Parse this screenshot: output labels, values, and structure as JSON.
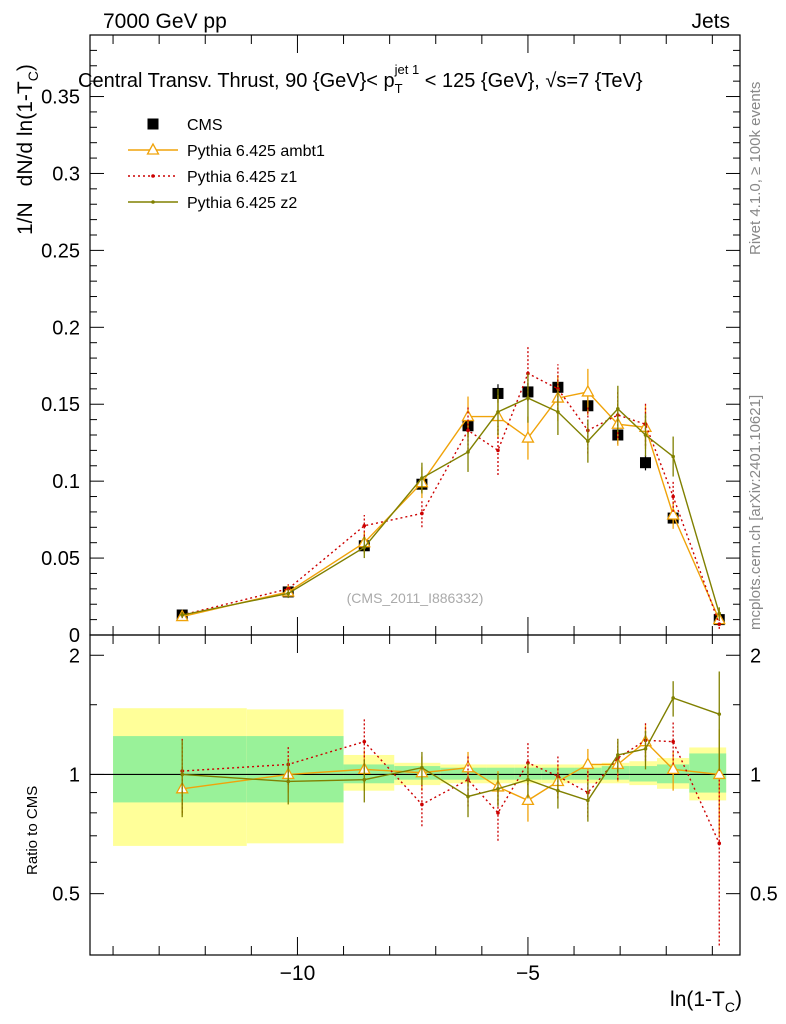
{
  "header": {
    "left": "7000 GeV pp",
    "right": "Jets"
  },
  "side_labels": {
    "rivet": "Rivet 4.1.0, ≥ 100k events",
    "mcplots": "mcplots.cern.ch [arXiv:2401.10621]"
  },
  "watermark": "(CMS_2011_I886332)",
  "colors": {
    "cms": "#000000",
    "ambt1": "#f0a30a",
    "z1": "#cc0000",
    "z2": "#808000",
    "band_green": "#99f299",
    "band_yellow": "#ffff99"
  },
  "chart_data": [
    {
      "type": "scatter",
      "title": "Central Transv. Thrust, 90 {GeV}< p_T^{jet 1} < 125 {GeV}, √s=7 {TeV}",
      "title_parts": {
        "a": "Central Transv. Thrust, 90 {GeV}< p",
        "sub": "T",
        "sup": "jet 1",
        "b": " < 125 {GeV}, ",
        "sqrt": "√",
        "s": "s=7 {TeV}"
      },
      "xlabel": "ln(1-T_C)",
      "ylabel": "1/N  dN/d ln(1-T_C)",
      "ylabel_parts": {
        "pre": "1/N",
        "main": "dN/d ln(1-T",
        "sub": "C",
        "post": ")"
      },
      "xlabel_parts": {
        "main": "ln(1-T",
        "sub": "C",
        "post": ")"
      },
      "xlim": [
        -14.5,
        -0.4
      ],
      "ylim": [
        0,
        0.39
      ],
      "yticks": [
        0,
        0.05,
        0.1,
        0.15,
        0.2,
        0.25,
        0.3,
        0.35
      ],
      "ytick_labels": [
        "0",
        "0.05",
        "0.1",
        "0.15",
        "0.2",
        "0.25",
        "0.3",
        "0.35"
      ],
      "xticks": [
        -10,
        -5
      ],
      "xtick_labels": [
        "−10",
        "−5"
      ],
      "legend_position": "top-left",
      "series": [
        {
          "name": "CMS",
          "style": "data",
          "points": [
            {
              "x": -12.5,
              "y": 0.013,
              "ey": 0.001
            },
            {
              "x": -10.2,
              "y": 0.028,
              "ey": 0.002
            },
            {
              "x": -8.55,
              "y": 0.058,
              "ey": 0.004
            },
            {
              "x": -7.3,
              "y": 0.098,
              "ey": 0.005
            },
            {
              "x": -6.3,
              "y": 0.136,
              "ey": 0.006
            },
            {
              "x": -5.65,
              "y": 0.157,
              "ey": 0.006
            },
            {
              "x": -5.0,
              "y": 0.158,
              "ey": 0.006
            },
            {
              "x": -4.35,
              "y": 0.161,
              "ey": 0.006
            },
            {
              "x": -3.7,
              "y": 0.149,
              "ey": 0.006
            },
            {
              "x": -3.05,
              "y": 0.13,
              "ey": 0.006
            },
            {
              "x": -2.45,
              "y": 0.112,
              "ey": 0.005
            },
            {
              "x": -1.85,
              "y": 0.076,
              "ey": 0.004
            },
            {
              "x": -0.85,
              "y": 0.01,
              "ey": 0.002
            }
          ]
        },
        {
          "name": "Pythia 6.425 ambt1",
          "style": "triangle",
          "points": [
            {
              "x": -12.5,
              "y": 0.012,
              "ey": 0.002
            },
            {
              "x": -10.2,
              "y": 0.028,
              "ey": 0.003
            },
            {
              "x": -8.55,
              "y": 0.06,
              "ey": 0.007
            },
            {
              "x": -7.3,
              "y": 0.099,
              "ey": 0.01
            },
            {
              "x": -6.3,
              "y": 0.142,
              "ey": 0.013
            },
            {
              "x": -5.65,
              "y": 0.142,
              "ey": 0.014
            },
            {
              "x": -5.0,
              "y": 0.128,
              "ey": 0.014
            },
            {
              "x": -4.35,
              "y": 0.154,
              "ey": 0.015
            },
            {
              "x": -3.7,
              "y": 0.158,
              "ey": 0.015
            },
            {
              "x": -3.05,
              "y": 0.137,
              "ey": 0.014
            },
            {
              "x": -2.45,
              "y": 0.135,
              "ey": 0.014
            },
            {
              "x": -1.85,
              "y": 0.078,
              "ey": 0.009
            },
            {
              "x": -0.85,
              "y": 0.01,
              "ey": 0.003
            }
          ]
        },
        {
          "name": "Pythia 6.425 z1",
          "style": "dotted",
          "points": [
            {
              "x": -12.5,
              "y": 0.013,
              "ey": 0.002
            },
            {
              "x": -10.2,
              "y": 0.03,
              "ey": 0.003
            },
            {
              "x": -8.55,
              "y": 0.071,
              "ey": 0.007
            },
            {
              "x": -7.3,
              "y": 0.079,
              "ey": 0.009
            },
            {
              "x": -6.3,
              "y": 0.133,
              "ey": 0.015
            },
            {
              "x": -5.65,
              "y": 0.12,
              "ey": 0.016
            },
            {
              "x": -5.0,
              "y": 0.17,
              "ey": 0.018
            },
            {
              "x": -4.35,
              "y": 0.16,
              "ey": 0.016
            },
            {
              "x": -3.7,
              "y": 0.133,
              "ey": 0.015
            },
            {
              "x": -3.05,
              "y": 0.143,
              "ey": 0.015
            },
            {
              "x": -2.45,
              "y": 0.137,
              "ey": 0.014
            },
            {
              "x": -1.85,
              "y": 0.09,
              "ey": 0.01
            },
            {
              "x": -0.85,
              "y": 0.007,
              "ey": 0.003
            }
          ]
        },
        {
          "name": "Pythia 6.425 z2",
          "style": "solid",
          "points": [
            {
              "x": -12.5,
              "y": 0.013,
              "ey": 0.002
            },
            {
              "x": -10.2,
              "y": 0.027,
              "ey": 0.003
            },
            {
              "x": -8.55,
              "y": 0.057,
              "ey": 0.007
            },
            {
              "x": -7.3,
              "y": 0.102,
              "ey": 0.01
            },
            {
              "x": -6.3,
              "y": 0.119,
              "ey": 0.013
            },
            {
              "x": -5.65,
              "y": 0.145,
              "ey": 0.015
            },
            {
              "x": -5.0,
              "y": 0.154,
              "ey": 0.016
            },
            {
              "x": -4.35,
              "y": 0.145,
              "ey": 0.015
            },
            {
              "x": -3.7,
              "y": 0.126,
              "ey": 0.014
            },
            {
              "x": -3.05,
              "y": 0.147,
              "ey": 0.015
            },
            {
              "x": -2.45,
              "y": 0.13,
              "ey": 0.014
            },
            {
              "x": -1.85,
              "y": 0.116,
              "ey": 0.013
            },
            {
              "x": -0.85,
              "y": 0.014,
              "ey": 0.004
            }
          ]
        }
      ]
    },
    {
      "type": "scatter",
      "title": "",
      "ylabel": "Ratio to CMS",
      "xlabel": "ln(1-T_C)",
      "xlim": [
        -14.5,
        -0.4
      ],
      "ylim": [
        0.35,
        2.25
      ],
      "yticks": [
        0.5,
        1,
        2
      ],
      "ytick_labels": [
        "0.5",
        "1",
        "2"
      ],
      "reference_line": 1,
      "bands": [
        {
          "x0": -14.0,
          "x1": -11.1,
          "green": [
            0.85,
            1.25
          ],
          "yellow": [
            0.66,
            1.47
          ]
        },
        {
          "x0": -11.1,
          "x1": -9.0,
          "green": [
            0.85,
            1.25
          ],
          "yellow": [
            0.67,
            1.46
          ]
        },
        {
          "x0": -9.0,
          "x1": -7.9,
          "green": [
            0.95,
            1.06
          ],
          "yellow": [
            0.91,
            1.12
          ]
        },
        {
          "x0": -7.9,
          "x1": -6.9,
          "green": [
            0.97,
            1.05
          ],
          "yellow": [
            0.94,
            1.07
          ]
        },
        {
          "x0": -6.9,
          "x1": -5.9,
          "green": [
            0.97,
            1.04
          ],
          "yellow": [
            0.95,
            1.06
          ]
        },
        {
          "x0": -5.9,
          "x1": -5.3,
          "green": [
            0.97,
            1.04
          ],
          "yellow": [
            0.95,
            1.06
          ]
        },
        {
          "x0": -5.3,
          "x1": -4.7,
          "green": [
            0.97,
            1.04
          ],
          "yellow": [
            0.95,
            1.06
          ]
        },
        {
          "x0": -4.7,
          "x1": -4.0,
          "green": [
            0.97,
            1.04
          ],
          "yellow": [
            0.95,
            1.06
          ]
        },
        {
          "x0": -4.0,
          "x1": -3.4,
          "green": [
            0.97,
            1.04
          ],
          "yellow": [
            0.95,
            1.06
          ]
        },
        {
          "x0": -3.4,
          "x1": -2.8,
          "green": [
            0.97,
            1.05
          ],
          "yellow": [
            0.95,
            1.07
          ]
        },
        {
          "x0": -2.8,
          "x1": -2.2,
          "green": [
            0.96,
            1.05
          ],
          "yellow": [
            0.94,
            1.08
          ]
        },
        {
          "x0": -2.2,
          "x1": -1.5,
          "green": [
            0.95,
            1.06
          ],
          "yellow": [
            0.92,
            1.1
          ]
        },
        {
          "x0": -1.5,
          "x1": -0.7,
          "green": [
            0.9,
            1.13
          ],
          "yellow": [
            0.86,
            1.17
          ]
        }
      ],
      "series": [
        {
          "name": "Pythia 6.425 ambt1",
          "style": "triangle",
          "points": [
            {
              "x": -12.5,
              "y": 0.92,
              "ey": 0.13
            },
            {
              "x": -10.2,
              "y": 1.0,
              "ey": 0.1
            },
            {
              "x": -8.55,
              "y": 1.03,
              "ey": 0.12
            },
            {
              "x": -7.3,
              "y": 1.01,
              "ey": 0.1
            },
            {
              "x": -6.3,
              "y": 1.04,
              "ey": 0.1
            },
            {
              "x": -5.65,
              "y": 0.93,
              "ey": 0.09
            },
            {
              "x": -5.0,
              "y": 0.86,
              "ey": 0.1
            },
            {
              "x": -4.35,
              "y": 0.96,
              "ey": 0.09
            },
            {
              "x": -3.7,
              "y": 1.06,
              "ey": 0.1
            },
            {
              "x": -3.05,
              "y": 1.06,
              "ey": 0.1
            },
            {
              "x": -2.45,
              "y": 1.21,
              "ey": 0.12
            },
            {
              "x": -1.85,
              "y": 1.03,
              "ey": 0.12
            },
            {
              "x": -0.85,
              "y": 1.0,
              "ey": 0.3
            }
          ]
        },
        {
          "name": "Pythia 6.425 z1",
          "style": "dotted",
          "points": [
            {
              "x": -12.5,
              "y": 1.02,
              "ey": 0.22
            },
            {
              "x": -10.2,
              "y": 1.06,
              "ey": 0.12
            },
            {
              "x": -8.55,
              "y": 1.21,
              "ey": 0.18
            },
            {
              "x": -7.3,
              "y": 0.84,
              "ey": 0.1
            },
            {
              "x": -6.3,
              "y": 0.97,
              "ey": 0.14
            },
            {
              "x": -5.65,
              "y": 0.8,
              "ey": 0.12
            },
            {
              "x": -5.0,
              "y": 1.07,
              "ey": 0.13
            },
            {
              "x": -4.35,
              "y": 0.99,
              "ey": 0.12
            },
            {
              "x": -3.7,
              "y": 0.9,
              "ey": 0.12
            },
            {
              "x": -3.05,
              "y": 1.1,
              "ey": 0.13
            },
            {
              "x": -2.45,
              "y": 1.22,
              "ey": 0.14
            },
            {
              "x": -1.85,
              "y": 1.21,
              "ey": 0.15
            },
            {
              "x": -0.85,
              "y": 0.67,
              "ey": 0.3
            }
          ]
        },
        {
          "name": "Pythia 6.425 z2",
          "style": "solid",
          "points": [
            {
              "x": -12.5,
              "y": 1.0,
              "ey": 0.22
            },
            {
              "x": -10.2,
              "y": 0.96,
              "ey": 0.12
            },
            {
              "x": -8.55,
              "y": 0.97,
              "ey": 0.12
            },
            {
              "x": -7.3,
              "y": 1.04,
              "ey": 0.1
            },
            {
              "x": -6.3,
              "y": 0.88,
              "ey": 0.1
            },
            {
              "x": -5.65,
              "y": 0.92,
              "ey": 0.09
            },
            {
              "x": -5.0,
              "y": 0.97,
              "ey": 0.1
            },
            {
              "x": -4.35,
              "y": 0.91,
              "ey": 0.09
            },
            {
              "x": -3.7,
              "y": 0.86,
              "ey": 0.1
            },
            {
              "x": -3.05,
              "y": 1.12,
              "ey": 0.11
            },
            {
              "x": -2.45,
              "y": 1.16,
              "ey": 0.13
            },
            {
              "x": -1.85,
              "y": 1.56,
              "ey": 0.16
            },
            {
              "x": -0.85,
              "y": 1.42,
              "ey": 0.4
            }
          ]
        }
      ]
    }
  ]
}
